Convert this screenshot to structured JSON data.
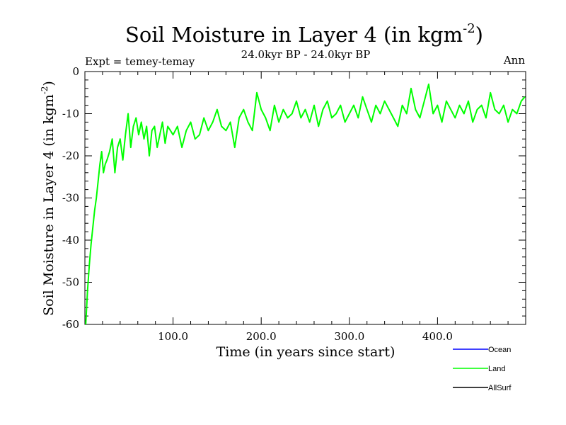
{
  "chart_data": {
    "type": "line",
    "title": "Soil Moisture in Layer 4 (in kgm",
    "title_sup": "-2",
    "title_close": ")",
    "subtitle": "24.0kyr BP - 24.0kyr BP",
    "expt_label": "Expt = temey-temay",
    "period_label": "Ann",
    "xlabel": "Time (in years since start)",
    "ylabel": "Soil Moisture in Layer 4 (in kgm",
    "ylabel_sup": "-2",
    "ylabel_close": ")",
    "xlim": [
      0,
      500
    ],
    "ylim": [
      -60,
      0
    ],
    "x_ticks": [
      100,
      200,
      300,
      400
    ],
    "x_tick_labels": [
      "100.0",
      "200.0",
      "300.0",
      "400.0"
    ],
    "y_ticks": [
      -60,
      -50,
      -40,
      -30,
      -20,
      -10,
      0
    ],
    "y_tick_labels": [
      "-60",
      "-50",
      "-40",
      "-30",
      "-20",
      "-10",
      "0"
    ],
    "legend": [
      {
        "name": "Ocean",
        "color": "#0000ff"
      },
      {
        "name": "Land",
        "color": "#00ff00"
      },
      {
        "name": "AllSurf",
        "color": "#000000"
      }
    ],
    "series": [
      {
        "name": "Land",
        "color": "#00ff00",
        "x": [
          1,
          3,
          5,
          7,
          9,
          11,
          13,
          15,
          17,
          19,
          21,
          23,
          25,
          28,
          31,
          34,
          37,
          40,
          43,
          46,
          49,
          52,
          55,
          58,
          61,
          64,
          67,
          70,
          73,
          76,
          79,
          82,
          85,
          88,
          91,
          94,
          97,
          100,
          105,
          110,
          115,
          120,
          125,
          130,
          135,
          140,
          145,
          150,
          155,
          160,
          165,
          170,
          175,
          180,
          185,
          190,
          195,
          200,
          205,
          210,
          215,
          220,
          225,
          230,
          235,
          240,
          245,
          250,
          255,
          260,
          265,
          270,
          275,
          280,
          285,
          290,
          295,
          300,
          305,
          310,
          315,
          320,
          325,
          330,
          335,
          340,
          345,
          350,
          355,
          360,
          365,
          370,
          375,
          380,
          385,
          390,
          395,
          400,
          405,
          410,
          415,
          420,
          425,
          430,
          435,
          440,
          445,
          450,
          455,
          460,
          465,
          470,
          475,
          480,
          485,
          490,
          495,
          499
        ],
        "values": [
          -60,
          -52,
          -46,
          -41,
          -37,
          -33,
          -30,
          -26,
          -22,
          -19,
          -24,
          -22,
          -21,
          -19,
          -16,
          -24,
          -18,
          -16,
          -21,
          -15,
          -10,
          -18,
          -13,
          -11,
          -15,
          -12,
          -16,
          -13,
          -20,
          -14,
          -13,
          -18,
          -15,
          -12,
          -17,
          -13,
          -14,
          -15,
          -13,
          -18,
          -14,
          -12,
          -16,
          -15,
          -11,
          -14,
          -12,
          -9,
          -13,
          -14,
          -12,
          -18,
          -11,
          -9,
          -12,
          -14,
          -5,
          -9,
          -11,
          -14,
          -8,
          -12,
          -9,
          -11,
          -10,
          -7,
          -11,
          -9,
          -12,
          -8,
          -13,
          -9,
          -7,
          -11,
          -10,
          -8,
          -12,
          -10,
          -8,
          -11,
          -6,
          -9,
          -12,
          -8,
          -10,
          -7,
          -9,
          -11,
          -13,
          -8,
          -10,
          -4,
          -9,
          -11,
          -7,
          -3,
          -10,
          -8,
          -12,
          -7,
          -9,
          -11,
          -8,
          -10,
          -7,
          -12,
          -9,
          -8,
          -11,
          -5,
          -9,
          -10,
          -8,
          -12,
          -9,
          -10,
          -7,
          -6
        ]
      }
    ]
  }
}
